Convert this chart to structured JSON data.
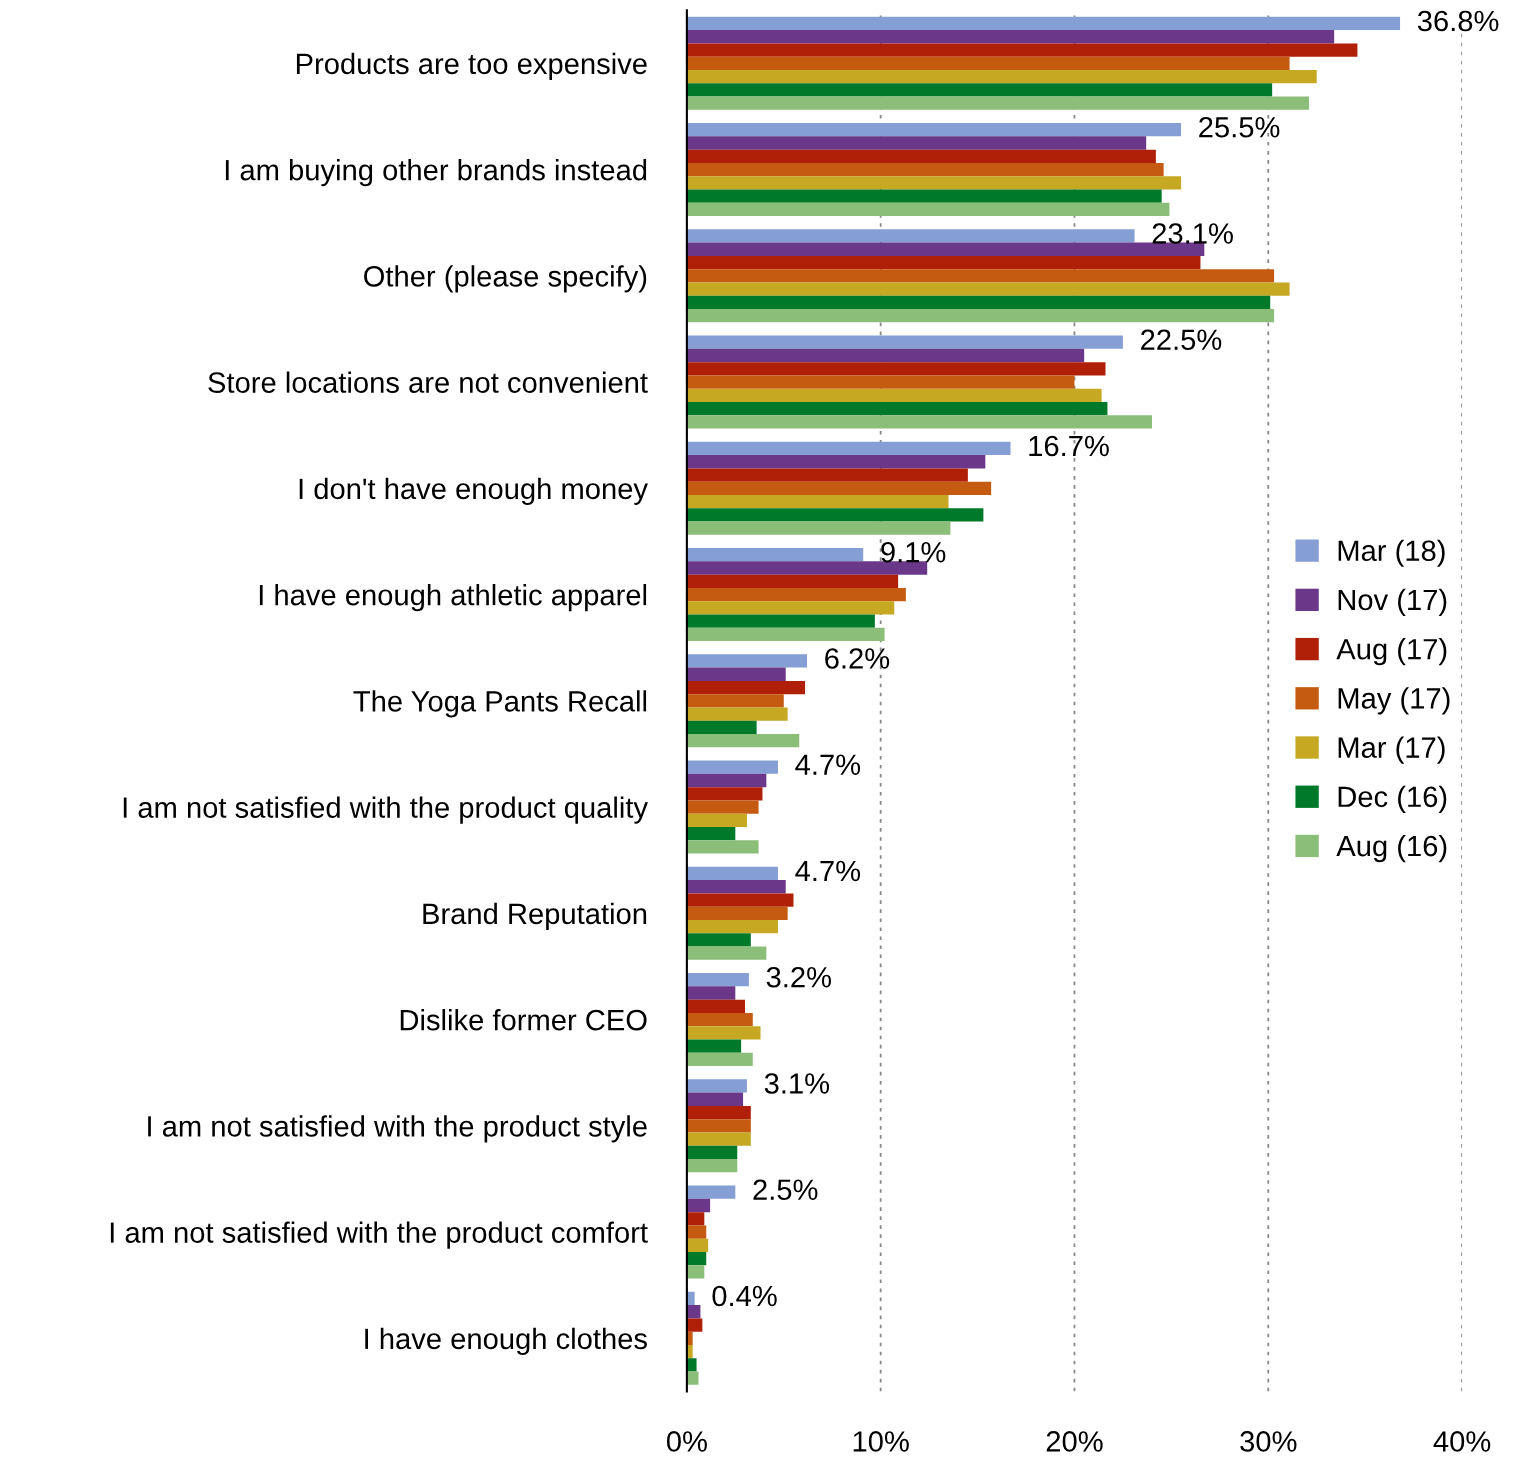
{
  "chart_data": {
    "type": "bar",
    "orientation": "horizontal",
    "categories": [
      "Products are too expensive",
      "I am buying other brands instead",
      "Other (please specify)",
      "Store locations are not convenient",
      "I don't have enough money",
      "I have enough athletic apparel",
      "The Yoga Pants Recall",
      "I am not satisfied with the product quality",
      "Brand Reputation",
      "Dislike former CEO",
      "I am not satisfied with the product style",
      "I am not satisfied with the product comfort",
      "I have enough clothes"
    ],
    "series": [
      {
        "name": "Mar (18)",
        "color": "#859fd5",
        "values": [
          36.8,
          25.5,
          23.1,
          22.5,
          16.7,
          9.1,
          6.2,
          4.7,
          4.7,
          3.2,
          3.1,
          2.5,
          0.4
        ],
        "value_labels": [
          "36.8%",
          "25.5%",
          "23.1%",
          "22.5%",
          "16.7%",
          "9.1%",
          "6.2%",
          "4.7%",
          "4.7%",
          "3.2%",
          "3.1%",
          "2.5%",
          "0.4%"
        ]
      },
      {
        "name": "Nov (17)",
        "color": "#6a3789",
        "values": [
          33.4,
          23.7,
          26.7,
          20.5,
          15.4,
          12.4,
          5.1,
          4.1,
          5.1,
          2.5,
          2.9,
          1.2,
          0.7
        ]
      },
      {
        "name": "Aug (17)",
        "color": "#b01f08",
        "values": [
          34.6,
          24.2,
          26.5,
          21.6,
          14.5,
          10.9,
          6.1,
          3.9,
          5.5,
          3.0,
          3.3,
          0.9,
          0.8
        ]
      },
      {
        "name": "May (17)",
        "color": "#c55b10",
        "values": [
          31.1,
          24.6,
          30.3,
          20.0,
          15.7,
          11.3,
          5.0,
          3.7,
          5.2,
          3.4,
          3.3,
          1.0,
          0.3
        ]
      },
      {
        "name": "Mar (17)",
        "color": "#c6a822",
        "values": [
          32.5,
          25.5,
          31.1,
          21.4,
          13.5,
          10.7,
          5.2,
          3.1,
          4.7,
          3.8,
          3.3,
          1.1,
          0.3
        ]
      },
      {
        "name": "Dec (16)",
        "color": "#007a2a",
        "values": [
          30.2,
          24.5,
          30.1,
          21.7,
          15.3,
          9.7,
          3.6,
          2.5,
          3.3,
          2.8,
          2.6,
          1.0,
          0.5
        ]
      },
      {
        "name": "Aug (16)",
        "color": "#8bbe78",
        "values": [
          32.1,
          24.9,
          30.3,
          24.0,
          13.6,
          10.2,
          5.8,
          3.7,
          4.1,
          3.4,
          2.6,
          0.9,
          0.6
        ]
      }
    ],
    "xlim": [
      0,
      40
    ],
    "xticks": [
      {
        "value": 0,
        "label": "0%"
      },
      {
        "value": 10,
        "label": "10%"
      },
      {
        "value": 20,
        "label": "20%"
      },
      {
        "value": 30,
        "label": "30%"
      },
      {
        "value": 40,
        "label": "40%"
      }
    ],
    "grid": "x",
    "line_style": "dotted",
    "legend": "right"
  }
}
